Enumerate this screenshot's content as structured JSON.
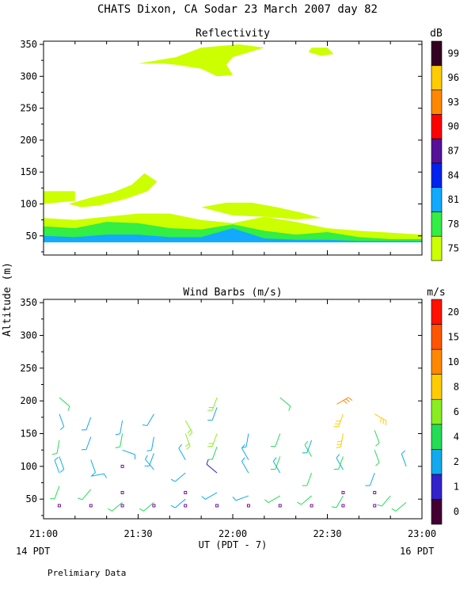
{
  "title": "CHATS Dixon, CA  Sodar  23 March 2007  day  82",
  "y_axis_label": "Altitude (m)",
  "x_axis_label": "UT  (PDT - 7)",
  "x_left_note": "14 PDT",
  "x_right_note": "16 PDT",
  "footer_note": "Prelimiary Data",
  "chart_data": [
    {
      "type": "heatmap",
      "title": "Reflectivity",
      "ylabel": "Altitude (m)",
      "xlabel": "UT  (PDT - 7)",
      "x_ticks": [
        "21:00",
        "21:30",
        "22:00",
        "22:30",
        "23:00"
      ],
      "xlim_minutes": [
        0,
        120
      ],
      "ylim": [
        20,
        355
      ],
      "y_ticks": [
        50,
        100,
        150,
        200,
        250,
        300,
        350
      ],
      "colorbar": {
        "unit": "dB",
        "levels": [
          75,
          78,
          81,
          84,
          87,
          90,
          93,
          96,
          99
        ],
        "colors": [
          "#ccff00",
          "#33ee44",
          "#11aaff",
          "#0022ee",
          "#551199",
          "#ff0000",
          "#ff8800",
          "#ffcc00",
          "#330022"
        ]
      },
      "contours": [
        {
          "level": 75,
          "polygon": [
            [
              0,
              78
            ],
            [
              10,
              75
            ],
            [
              20,
              80
            ],
            [
              30,
              85
            ],
            [
              40,
              85
            ],
            [
              50,
              75
            ],
            [
              60,
              70
            ],
            [
              65,
              75
            ],
            [
              70,
              80
            ],
            [
              80,
              72
            ],
            [
              90,
              62
            ],
            [
              100,
              58
            ],
            [
              110,
              55
            ],
            [
              120,
              52
            ],
            [
              120,
              40
            ],
            [
              0,
              40
            ]
          ]
        },
        {
          "level": 75,
          "polygon": [
            [
              0,
              100
            ],
            [
              10,
              105
            ],
            [
              10,
              120
            ],
            [
              0,
              120
            ]
          ]
        },
        {
          "level": 75,
          "polygon": [
            [
              8,
              100
            ],
            [
              15,
              110
            ],
            [
              22,
              118
            ],
            [
              28,
              130
            ],
            [
              32,
              148
            ],
            [
              36,
              135
            ],
            [
              33,
              120
            ],
            [
              26,
              108
            ],
            [
              18,
              98
            ],
            [
              12,
              95
            ]
          ]
        },
        {
          "level": 75,
          "polygon": [
            [
              50,
              95
            ],
            [
              58,
              102
            ],
            [
              66,
              102
            ],
            [
              74,
              95
            ],
            [
              82,
              86
            ],
            [
              88,
              78
            ],
            [
              80,
              76
            ],
            [
              70,
              80
            ],
            [
              60,
              82
            ]
          ]
        },
        {
          "level": 75,
          "polygon": [
            [
              30,
              320
            ],
            [
              38,
              320
            ],
            [
              42,
              318
            ],
            [
              50,
              312
            ],
            [
              55,
              300
            ],
            [
              60,
              302
            ],
            [
              58,
              318
            ],
            [
              60,
              330
            ],
            [
              70,
              345
            ],
            [
              62,
              350
            ],
            [
              50,
              345
            ],
            [
              42,
              330
            ]
          ]
        },
        {
          "level": 75,
          "polygon": [
            [
              85,
              345
            ],
            [
              90,
              345
            ],
            [
              92,
              335
            ],
            [
              88,
              332
            ],
            [
              84,
              338
            ]
          ]
        },
        {
          "level": 78,
          "polygon": [
            [
              0,
              65
            ],
            [
              10,
              62
            ],
            [
              20,
              72
            ],
            [
              30,
              70
            ],
            [
              40,
              62
            ],
            [
              50,
              60
            ],
            [
              60,
              68
            ],
            [
              70,
              58
            ],
            [
              80,
              52
            ],
            [
              90,
              56
            ],
            [
              100,
              48
            ],
            [
              110,
              45
            ],
            [
              120,
              45
            ],
            [
              120,
              40
            ],
            [
              0,
              40
            ]
          ]
        },
        {
          "level": 81,
          "polygon": [
            [
              0,
              50
            ],
            [
              10,
              48
            ],
            [
              20,
              52
            ],
            [
              30,
              52
            ],
            [
              40,
              48
            ],
            [
              50,
              48
            ],
            [
              60,
              62
            ],
            [
              70,
              46
            ],
            [
              80,
              44
            ],
            [
              90,
              44
            ],
            [
              100,
              42
            ],
            [
              120,
              42
            ],
            [
              120,
              40
            ],
            [
              0,
              40
            ]
          ]
        }
      ]
    },
    {
      "type": "scatter",
      "title": "Wind Barbs (m/s)",
      "ylabel": "Altitude (m)",
      "xlabel": "UT  (PDT - 7)",
      "x_ticks": [
        "21:00",
        "21:30",
        "22:00",
        "22:30",
        "23:00"
      ],
      "xlim_minutes": [
        0,
        120
      ],
      "ylim": [
        20,
        355
      ],
      "y_ticks": [
        50,
        100,
        150,
        200,
        250,
        300,
        350
      ],
      "colorbar": {
        "unit": "m/s",
        "labels": [
          "0",
          "1",
          "2",
          "4",
          "6",
          "8",
          "10",
          "15",
          "20"
        ],
        "colors": [
          "#440033",
          "#3322cc",
          "#11aaee",
          "#22dd55",
          "#88ee22",
          "#ffcc00",
          "#ff8800",
          "#ff5500",
          "#ff1100"
        ]
      },
      "times_minutes": [
        5,
        15,
        25,
        35,
        45,
        55,
        65,
        75,
        85,
        95,
        105,
        115
      ],
      "heights_m": [
        40,
        60,
        80,
        100,
        120,
        140,
        160,
        180,
        200
      ],
      "barbs": [
        {
          "t": 5,
          "h": 40,
          "s": 1,
          "d": 0
        },
        {
          "t": 15,
          "h": 40,
          "s": 1,
          "d": 0
        },
        {
          "t": 25,
          "h": 40,
          "s": 1,
          "d": 0
        },
        {
          "t": 35,
          "h": 40,
          "s": 1,
          "d": 0
        },
        {
          "t": 45,
          "h": 40,
          "s": 1,
          "d": 0
        },
        {
          "t": 55,
          "h": 40,
          "s": 1,
          "d": 0
        },
        {
          "t": 65,
          "h": 40,
          "s": 1,
          "d": 0
        },
        {
          "t": 75,
          "h": 40,
          "s": 1,
          "d": 0
        },
        {
          "t": 85,
          "h": 40,
          "s": 1,
          "d": 0
        },
        {
          "t": 95,
          "h": 40,
          "s": 1,
          "d": 0
        },
        {
          "t": 105,
          "h": 40,
          "s": 1,
          "d": 0
        },
        {
          "t": 25,
          "h": 60,
          "s": 1,
          "d": 0
        },
        {
          "t": 45,
          "h": 60,
          "s": 1,
          "d": 0
        },
        {
          "t": 95,
          "h": 60,
          "s": 1,
          "d": 0
        },
        {
          "t": 105,
          "h": 60,
          "s": 1,
          "d": 0
        },
        {
          "t": 5,
          "h": 70,
          "s": 4,
          "d": 200
        },
        {
          "t": 15,
          "h": 65,
          "s": 4,
          "d": 220
        },
        {
          "t": 25,
          "h": 45,
          "s": 4,
          "d": 230
        },
        {
          "t": 35,
          "h": 45,
          "s": 4,
          "d": 230
        },
        {
          "t": 45,
          "h": 50,
          "s": 3,
          "d": 230
        },
        {
          "t": 55,
          "h": 60,
          "s": 3,
          "d": 240
        },
        {
          "t": 65,
          "h": 55,
          "s": 3,
          "d": 250
        },
        {
          "t": 75,
          "h": 55,
          "s": 4,
          "d": 240
        },
        {
          "t": 85,
          "h": 55,
          "s": 4,
          "d": 230
        },
        {
          "t": 95,
          "h": 55,
          "s": 4,
          "d": 210
        },
        {
          "t": 110,
          "h": 55,
          "s": 4,
          "d": 220
        },
        {
          "t": 115,
          "h": 45,
          "s": 4,
          "d": 230
        },
        {
          "t": 5,
          "h": 90,
          "s": 3,
          "d": 340
        },
        {
          "t": 15,
          "h": 85,
          "s": 3,
          "d": 80
        },
        {
          "t": 25,
          "h": 100,
          "s": 1,
          "d": 0
        },
        {
          "t": 35,
          "h": 95,
          "s": 3,
          "d": 320
        },
        {
          "t": 45,
          "h": 90,
          "s": 3,
          "d": 230
        },
        {
          "t": 55,
          "h": 90,
          "s": 1,
          "d": 310
        },
        {
          "t": 65,
          "h": 90,
          "s": 3,
          "d": 330
        },
        {
          "t": 75,
          "h": 90,
          "s": 3,
          "d": 330
        },
        {
          "t": 85,
          "h": 90,
          "s": 4,
          "d": 200
        },
        {
          "t": 95,
          "h": 95,
          "s": 3,
          "d": 330
        },
        {
          "t": 105,
          "h": 90,
          "s": 3,
          "d": 200
        },
        {
          "t": 115,
          "h": 100,
          "s": 3,
          "d": 340
        },
        {
          "t": 5,
          "h": 115,
          "s": 3,
          "d": 160
        },
        {
          "t": 15,
          "h": 110,
          "s": 3,
          "d": 160
        },
        {
          "t": 25,
          "h": 125,
          "s": 3,
          "d": 110
        },
        {
          "t": 35,
          "h": 120,
          "s": 3,
          "d": 200
        },
        {
          "t": 45,
          "h": 110,
          "s": 3,
          "d": 330
        },
        {
          "t": 55,
          "h": 130,
          "s": 4,
          "d": 200
        },
        {
          "t": 65,
          "h": 110,
          "s": 3,
          "d": 330
        },
        {
          "t": 75,
          "h": 115,
          "s": 4,
          "d": 200
        },
        {
          "t": 85,
          "h": 115,
          "s": 4,
          "d": 330
        },
        {
          "t": 95,
          "h": 115,
          "s": 4,
          "d": 200
        },
        {
          "t": 105,
          "h": 125,
          "s": 4,
          "d": 160
        },
        {
          "t": 5,
          "h": 140,
          "s": 4,
          "d": 190
        },
        {
          "t": 15,
          "h": 145,
          "s": 3,
          "d": 200
        },
        {
          "t": 25,
          "h": 150,
          "s": 4,
          "d": 190
        },
        {
          "t": 35,
          "h": 145,
          "s": 3,
          "d": 190
        },
        {
          "t": 45,
          "h": 150,
          "s": 6,
          "d": 160
        },
        {
          "t": 55,
          "h": 150,
          "s": 6,
          "d": 200
        },
        {
          "t": 65,
          "h": 150,
          "s": 3,
          "d": 190
        },
        {
          "t": 75,
          "h": 150,
          "s": 4,
          "d": 200
        },
        {
          "t": 85,
          "h": 140,
          "s": 3,
          "d": 200
        },
        {
          "t": 95,
          "h": 150,
          "s": 8,
          "d": 190
        },
        {
          "t": 105,
          "h": 155,
          "s": 4,
          "d": 160
        },
        {
          "t": 5,
          "h": 180,
          "s": 3,
          "d": 160
        },
        {
          "t": 15,
          "h": 175,
          "s": 3,
          "d": 200
        },
        {
          "t": 25,
          "h": 170,
          "s": 3,
          "d": 190
        },
        {
          "t": 35,
          "h": 180,
          "s": 3,
          "d": 210
        },
        {
          "t": 45,
          "h": 170,
          "s": 6,
          "d": 150
        },
        {
          "t": 55,
          "h": 190,
          "s": 3,
          "d": 200
        },
        {
          "t": 95,
          "h": 180,
          "s": 8,
          "d": 200
        },
        {
          "t": 105,
          "h": 180,
          "s": 8,
          "d": 120
        },
        {
          "t": 5,
          "h": 205,
          "s": 4,
          "d": 130
        },
        {
          "t": 55,
          "h": 205,
          "s": 6,
          "d": 200
        },
        {
          "t": 75,
          "h": 205,
          "s": 4,
          "d": 130
        },
        {
          "t": 93,
          "h": 195,
          "s": 10,
          "d": 60
        }
      ]
    }
  ]
}
